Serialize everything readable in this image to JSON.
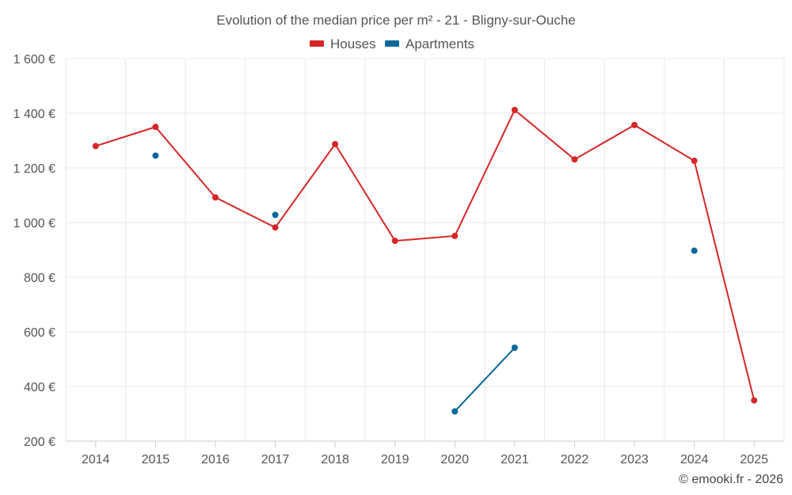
{
  "chart_data": {
    "type": "line",
    "title": "Evolution of the median price per m² - 21 - Bligny-sur-Ouche",
    "categories": [
      "2014",
      "2015",
      "2016",
      "2017",
      "2018",
      "2019",
      "2020",
      "2021",
      "2022",
      "2023",
      "2024",
      "2025"
    ],
    "y_ticks": [
      "200 €",
      "400 €",
      "600 €",
      "800 €",
      "1 000 €",
      "1 200 €",
      "1 400 €",
      "1 600 €"
    ],
    "ylim": [
      200,
      1600
    ],
    "y_tick_values": [
      200,
      400,
      600,
      800,
      1000,
      1200,
      1400,
      1600
    ],
    "grid": true,
    "legend_position": "top-center",
    "series": [
      {
        "name": "Houses",
        "color": "#d62728",
        "values": [
          1280,
          1350,
          1092,
          982,
          1287,
          933,
          951,
          1412,
          1231,
          1357,
          1226,
          349
        ]
      },
      {
        "name": "Apartments",
        "color": "#08689c",
        "values": [
          null,
          1245,
          null,
          1028,
          null,
          null,
          309,
          542,
          null,
          null,
          897,
          null
        ]
      }
    ],
    "credit": "© emooki.fr - 2026"
  }
}
